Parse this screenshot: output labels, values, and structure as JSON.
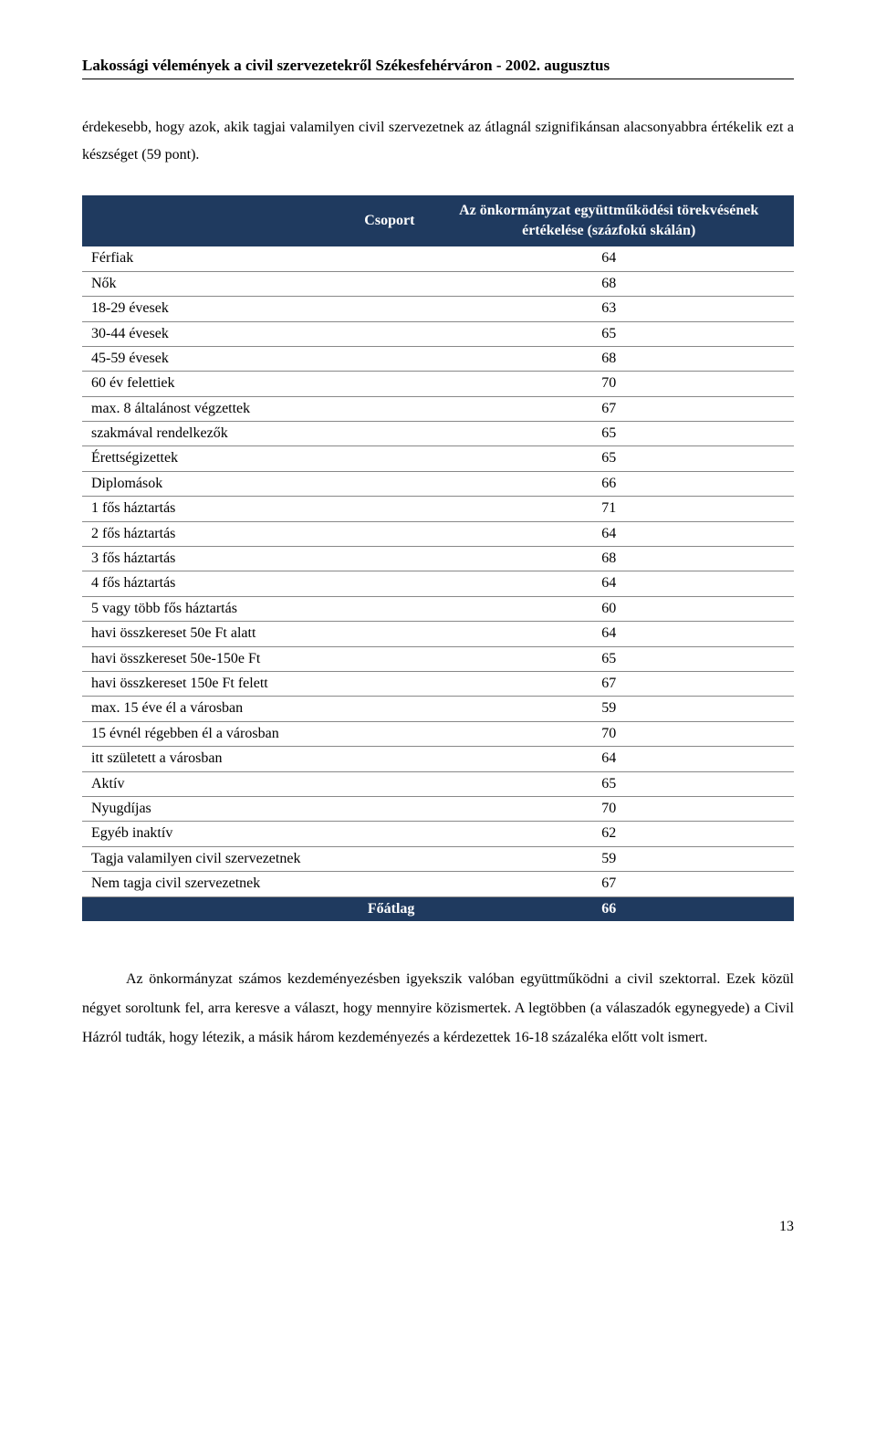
{
  "header": {
    "title": "Lakossági vélemények a civil szervezetekről Székesfehérváron - 2002. augusztus"
  },
  "intro": "érdekesebb, hogy azok, akik tagjai valamilyen civil szervezetnek az átlagnál szignifikánsan alacsonyabbra értékelik ezt a készséget (59 pont).",
  "table": {
    "header": {
      "group_label": "Csoport",
      "value_label": "Az önkormányzat együttműködési törekvésének értékelése (százfokú skálán)"
    },
    "rows": [
      {
        "label": "Férfiak",
        "value": "64"
      },
      {
        "label": "Nők",
        "value": "68"
      },
      {
        "label": "18-29 évesek",
        "value": "63"
      },
      {
        "label": "30-44 évesek",
        "value": "65"
      },
      {
        "label": "45-59 évesek",
        "value": "68"
      },
      {
        "label": "60 év felettiek",
        "value": "70"
      },
      {
        "label": "max. 8 általánost végzettek",
        "value": "67"
      },
      {
        "label": "szakmával rendelkezők",
        "value": "65"
      },
      {
        "label": "Érettségizettek",
        "value": "65"
      },
      {
        "label": "Diplomások",
        "value": "66"
      },
      {
        "label": "1 fős háztartás",
        "value": "71"
      },
      {
        "label": "2 fős háztartás",
        "value": "64"
      },
      {
        "label": "3 fős háztartás",
        "value": "68"
      },
      {
        "label": "4 fős háztartás",
        "value": "64"
      },
      {
        "label": "5 vagy több fős háztartás",
        "value": "60"
      },
      {
        "label": "havi összkereset 50e Ft alatt",
        "value": "64"
      },
      {
        "label": "havi összkereset 50e-150e Ft",
        "value": "65"
      },
      {
        "label": "havi összkereset 150e Ft felett",
        "value": "67"
      },
      {
        "label": "max. 15 éve él a városban",
        "value": "59"
      },
      {
        "label": "15 évnél régebben él a városban",
        "value": "70"
      },
      {
        "label": "itt született a városban",
        "value": "64"
      },
      {
        "label": "Aktív",
        "value": "65"
      },
      {
        "label": "Nyugdíjas",
        "value": "70"
      },
      {
        "label": "Egyéb inaktív",
        "value": "62"
      },
      {
        "label": "Tagja valamilyen civil szervezetnek",
        "value": "59"
      },
      {
        "label": "Nem tagja civil szervezetnek",
        "value": "67"
      }
    ],
    "footer": {
      "label": "Főátlag",
      "value": "66"
    },
    "style": {
      "header_bg": "#1f3a5f",
      "header_color": "#ffffff",
      "row_border": "#888888",
      "footer_bg": "#1f3a5f",
      "footer_color": "#ffffff",
      "font_family": "Times New Roman",
      "font_size_pt": 12
    }
  },
  "body": "Az önkormányzat számos kezdeményezésben igyekszik valóban együttműködni a civil szektorral. Ezek közül négyet soroltunk fel, arra keresve a választ, hogy mennyire közismertek. A legtöbben (a válaszadók egynegyede) a Civil Házról tudták, hogy létezik, a másik három kezdeményezés a kérdezettek 16-18 százaléka előtt volt ismert.",
  "page_number": "13"
}
